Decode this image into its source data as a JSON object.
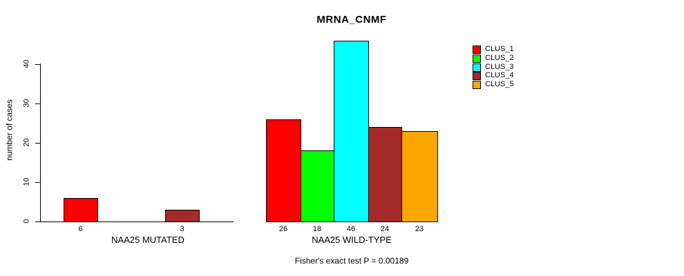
{
  "chart_data": {
    "type": "bar",
    "title": "MRNA_CNMF",
    "ylabel": "number of cases",
    "xlabel": "",
    "yticks": [
      0,
      10,
      20,
      30,
      40
    ],
    "ylim": [
      0,
      46
    ],
    "grid": false,
    "legend_position": "top-right",
    "annotation": "Fisher's exact test P = 0.00189",
    "series_names": [
      "CLUS_1",
      "CLUS_2",
      "CLUS_3",
      "CLUS_4",
      "CLUS_5"
    ],
    "series_colors": [
      "#FF0000",
      "#00FF00",
      "#00FFFF",
      "#A52A2A",
      "#FFA500"
    ],
    "groups": [
      {
        "label": "NAA25 MUTATED",
        "values": [
          6,
          0,
          0,
          3,
          0
        ]
      },
      {
        "label": "NAA25 WILD-TYPE",
        "values": [
          26,
          18,
          46,
          24,
          23
        ]
      }
    ],
    "shown_bar_value_labels": {
      "NAA25 MUTATED": [
        "6",
        "3"
      ],
      "NAA25 WILD-TYPE": [
        "26",
        "18",
        "46",
        "24",
        "23"
      ]
    }
  },
  "legend": {
    "items": [
      {
        "label": "CLUS_1",
        "color": "#FF0000"
      },
      {
        "label": "CLUS_2",
        "color": "#00FF00"
      },
      {
        "label": "CLUS_3",
        "color": "#00FFFF"
      },
      {
        "label": "CLUS_4",
        "color": "#A52A2A"
      },
      {
        "label": "CLUS_5",
        "color": "#FFA500"
      }
    ]
  }
}
